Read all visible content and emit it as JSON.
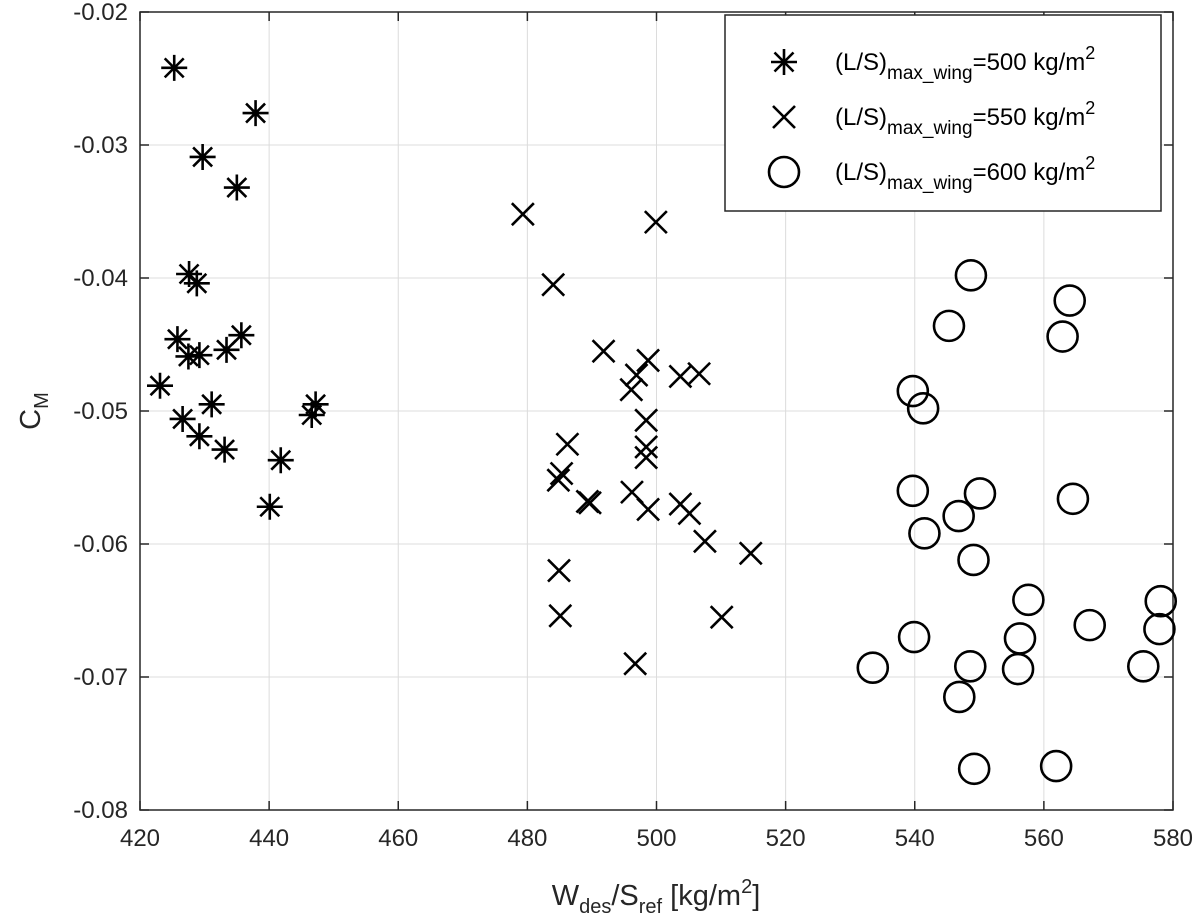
{
  "chart_data": {
    "type": "scatter",
    "xlabel": {
      "main": "W",
      "sub1": "des",
      "mid": "/S",
      "sub2": "ref",
      "unit": " [kg/m",
      "sup": "2",
      "close": "]"
    },
    "ylabel": {
      "main": "C",
      "sub": "M"
    },
    "xlim": [
      420,
      580
    ],
    "ylim": [
      -0.08,
      -0.02
    ],
    "x_ticks": [
      "420",
      "440",
      "460",
      "480",
      "500",
      "520",
      "540",
      "560",
      "580"
    ],
    "y_ticks": [
      "-0.08",
      "-0.07",
      "-0.06",
      "-0.05",
      "-0.04",
      "-0.03",
      "-0.02"
    ],
    "grid": true,
    "legend_position": "top-right",
    "series": [
      {
        "name_parts": {
          "prefix": "(L/S)",
          "sub": "max_wing",
          "value": "=500 kg/m",
          "sup": "2"
        },
        "marker": "asterisk",
        "points": [
          [
            425.3,
            -0.0242
          ],
          [
            437.9,
            -0.0276
          ],
          [
            429.7,
            -0.0309
          ],
          [
            435.0,
            -0.0332
          ],
          [
            427.6,
            -0.0397
          ],
          [
            428.8,
            -0.0404
          ],
          [
            425.8,
            -0.0446
          ],
          [
            427.5,
            -0.0459
          ],
          [
            429.2,
            -0.0458
          ],
          [
            433.4,
            -0.0454
          ],
          [
            435.7,
            -0.0443
          ],
          [
            423.1,
            -0.0481
          ],
          [
            426.6,
            -0.0506
          ],
          [
            431.1,
            -0.0495
          ],
          [
            429.2,
            -0.0519
          ],
          [
            433.1,
            -0.0529
          ],
          [
            446.6,
            -0.0503
          ],
          [
            447.2,
            -0.0495
          ],
          [
            441.8,
            -0.0537
          ],
          [
            440.1,
            -0.0572
          ]
        ]
      },
      {
        "name_parts": {
          "prefix": "(L/S)",
          "sub": "max_wing",
          "value": "=550 kg/m",
          "sup": "2"
        },
        "marker": "x",
        "points": [
          [
            479.3,
            -0.0352
          ],
          [
            499.9,
            -0.0358
          ],
          [
            484.0,
            -0.0405
          ],
          [
            491.8,
            -0.0455
          ],
          [
            496.9,
            -0.0473
          ],
          [
            498.7,
            -0.0462
          ],
          [
            496.1,
            -0.0484
          ],
          [
            503.7,
            -0.0474
          ],
          [
            506.6,
            -0.0472
          ],
          [
            498.4,
            -0.0507
          ],
          [
            486.2,
            -0.0525
          ],
          [
            498.4,
            -0.0527
          ],
          [
            498.4,
            -0.0535
          ],
          [
            485.3,
            -0.0547
          ],
          [
            484.8,
            -0.0552
          ],
          [
            489.3,
            -0.0568
          ],
          [
            489.7,
            -0.0569
          ],
          [
            496.2,
            -0.0561
          ],
          [
            498.7,
            -0.0574
          ],
          [
            503.7,
            -0.057
          ],
          [
            505.1,
            -0.0577
          ],
          [
            507.5,
            -0.0598
          ],
          [
            514.6,
            -0.0607
          ],
          [
            484.9,
            -0.062
          ],
          [
            485.1,
            -0.0654
          ],
          [
            510.1,
            -0.0655
          ],
          [
            496.7,
            -0.069
          ]
        ]
      },
      {
        "name_parts": {
          "prefix": "(L/S)",
          "sub": "max_wing",
          "value": "=600 kg/m",
          "sup": "2"
        },
        "marker": "circle",
        "points": [
          [
            548.7,
            -0.0398
          ],
          [
            564.0,
            -0.0417
          ],
          [
            545.3,
            -0.0436
          ],
          [
            562.9,
            -0.0444
          ],
          [
            539.7,
            -0.0485
          ],
          [
            541.3,
            -0.0498
          ],
          [
            539.7,
            -0.056
          ],
          [
            546.8,
            -0.0579
          ],
          [
            550.1,
            -0.0562
          ],
          [
            564.5,
            -0.0566
          ],
          [
            541.5,
            -0.0592
          ],
          [
            549.1,
            -0.0612
          ],
          [
            557.6,
            -0.0642
          ],
          [
            578.1,
            -0.0643
          ],
          [
            539.9,
            -0.067
          ],
          [
            556.3,
            -0.0671
          ],
          [
            567.1,
            -0.0661
          ],
          [
            577.9,
            -0.0664
          ],
          [
            533.5,
            -0.0693
          ],
          [
            548.6,
            -0.0692
          ],
          [
            556.0,
            -0.0694
          ],
          [
            575.4,
            -0.0692
          ],
          [
            546.9,
            -0.0715
          ],
          [
            549.2,
            -0.0769
          ],
          [
            561.9,
            -0.0767
          ]
        ]
      }
    ]
  }
}
